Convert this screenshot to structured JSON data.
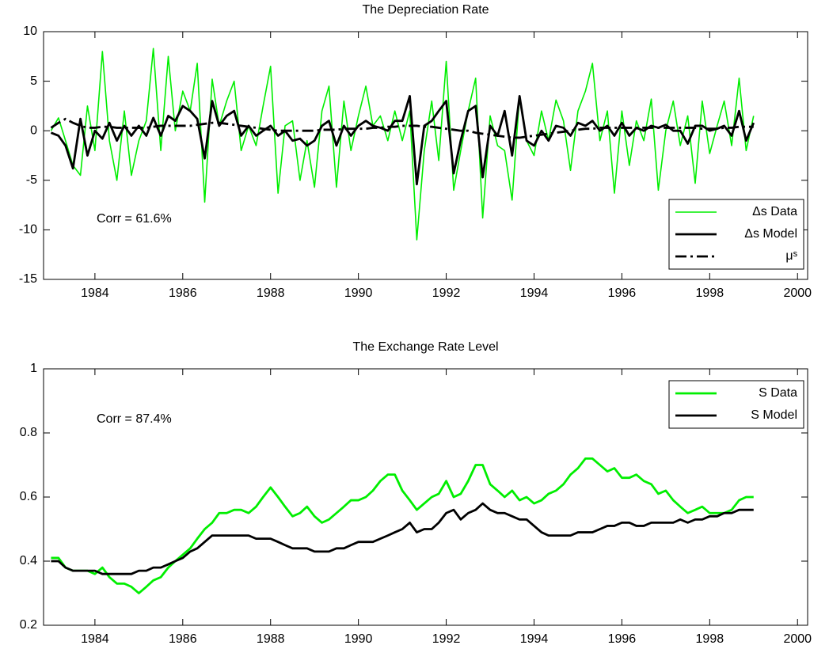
{
  "chart_data": [
    {
      "type": "line",
      "title": "The Depreciation Rate",
      "annotation": "Corr = 61.6%",
      "legend": "lower right",
      "x": [
        1983,
        1983.17,
        1983.33,
        1983.5,
        1983.67,
        1983.83,
        1984,
        1984.17,
        1984.33,
        1984.5,
        1984.67,
        1984.83,
        1985,
        1985.17,
        1985.33,
        1985.5,
        1985.67,
        1985.83,
        1986,
        1986.17,
        1986.33,
        1986.5,
        1986.67,
        1986.83,
        1987,
        1987.17,
        1987.33,
        1987.5,
        1987.67,
        1987.83,
        1988,
        1988.17,
        1988.33,
        1988.5,
        1988.67,
        1988.83,
        1989,
        1989.17,
        1989.33,
        1989.5,
        1989.67,
        1989.83,
        1990,
        1990.17,
        1990.33,
        1990.5,
        1990.67,
        1990.83,
        1991,
        1991.17,
        1991.33,
        1991.5,
        1991.67,
        1991.83,
        1992,
        1992.17,
        1992.33,
        1992.5,
        1992.67,
        1992.83,
        1993,
        1993.17,
        1993.33,
        1993.5,
        1993.67,
        1993.83,
        1994,
        1994.17,
        1994.33,
        1994.5,
        1994.67,
        1994.83,
        1995,
        1995.17,
        1995.33,
        1995.5,
        1995.67,
        1995.83,
        1996,
        1996.17,
        1996.33,
        1996.5,
        1996.67,
        1996.83,
        1997,
        1997.17,
        1997.33,
        1997.5,
        1997.67,
        1997.83,
        1998,
        1998.17,
        1998.33,
        1998.5,
        1998.67,
        1998.83,
        1999
      ],
      "series": [
        {
          "name": "Δs Data",
          "color": "#00ee00",
          "linewidth": 1.6,
          "linestyle": "solid",
          "values": [
            0,
            1.3,
            -1,
            -3.5,
            -4.5,
            2.5,
            -2,
            8,
            -1,
            -5,
            2,
            -4.5,
            -1,
            1,
            8.3,
            -2,
            7.5,
            0,
            4,
            2,
            6.8,
            -7.2,
            5.2,
            0.5,
            3,
            5,
            -2,
            0.5,
            -1.5,
            2.5,
            6.5,
            -6.3,
            0.5,
            1,
            -5,
            -1,
            -5.7,
            2,
            4.5,
            -5.7,
            3,
            -2,
            1.5,
            4.5,
            0.5,
            1.5,
            -1,
            2,
            -1,
            2,
            -11,
            -2,
            3,
            -3,
            7,
            -6,
            -2,
            2,
            5.3,
            -8.8,
            1.5,
            -1.5,
            -2,
            -7,
            3.5,
            -1,
            -2.5,
            2,
            -1,
            3.1,
            1,
            -4,
            2,
            4,
            6.8,
            -1,
            2,
            -6.3,
            2,
            -3.5,
            1,
            -1,
            3.2,
            -6,
            0,
            3,
            -1.5,
            1.5,
            -5.3,
            3,
            -2.3,
            0.5,
            3,
            -1.5,
            5.3,
            -2,
            1.5
          ]
        },
        {
          "name": "Δs Model",
          "color": "#000000",
          "linewidth": 2.8,
          "linestyle": "solid",
          "values": [
            -0.2,
            -0.5,
            -1.5,
            -3.8,
            1.2,
            -2.5,
            0,
            -0.8,
            0.8,
            -1,
            0.5,
            -0.5,
            0.5,
            -0.5,
            1.3,
            -0.5,
            1.5,
            1,
            2.5,
            2,
            1.2,
            -2.8,
            3,
            0.5,
            1.5,
            2,
            -0.5,
            0.5,
            -0.5,
            0,
            0.5,
            -0.5,
            0,
            -1,
            -0.8,
            -1.5,
            -1,
            0.5,
            1,
            -1.5,
            0.5,
            -0.5,
            0.5,
            1,
            0.5,
            0.3,
            0,
            1,
            1,
            3.5,
            -5.4,
            0.5,
            1,
            2,
            3,
            -4.3,
            -1,
            2,
            2.5,
            -4.7,
            0.5,
            -0.5,
            2,
            -2.5,
            3.5,
            -1,
            -1.5,
            0,
            -1,
            0.5,
            0.3,
            -0.5,
            0.8,
            0.5,
            1,
            0,
            0.5,
            -0.5,
            0.8,
            -0.5,
            0.3,
            0,
            0.5,
            0.3,
            0.6,
            0,
            0,
            -1.3,
            0.5,
            0.5,
            0,
            0.2,
            0.5,
            -0.5,
            2,
            -1,
            0.8
          ]
        },
        {
          "name": "μˢ",
          "color": "#000000",
          "linewidth": 2.8,
          "linestyle": "dashdot",
          "values": [
            0.3,
            0.8,
            1.2,
            0.8,
            0.5,
            0.3,
            0.3,
            0.4,
            0.4,
            0.3,
            0.3,
            0.3,
            0.3,
            0.3,
            0.4,
            0.5,
            0.5,
            0.5,
            0.5,
            0.5,
            0.6,
            0.7,
            0.8,
            0.8,
            0.7,
            0.6,
            0.5,
            0.4,
            0.3,
            0.2,
            0.1,
            0,
            0,
            0,
            0,
            0,
            0,
            0.1,
            0.1,
            0.1,
            0.2,
            0.2,
            0.2,
            0.2,
            0.3,
            0.3,
            0.4,
            0.4,
            0.5,
            0.5,
            0.5,
            0.4,
            0.4,
            0.3,
            0.2,
            0.1,
            0,
            0,
            -0.2,
            -0.3,
            -0.4,
            -0.5,
            -0.6,
            -0.7,
            -0.7,
            -0.6,
            -0.5,
            -0.4,
            -0.3,
            -0.2,
            -0.1,
            0,
            0.1,
            0.2,
            0.2,
            0.3,
            0.3,
            0.3,
            0.3,
            0.3,
            0.3,
            0.3,
            0.3,
            0.3,
            0.3,
            0.3,
            0.3,
            0.3,
            0.3,
            0.2,
            0.2,
            0.2,
            0.3,
            0.3,
            0.4,
            0.4,
            0.4
          ]
        }
      ],
      "xlim": [
        1982.83,
        2000.23
      ],
      "xticks": [
        1984,
        1986,
        1988,
        1990,
        1992,
        1994,
        1996,
        1998,
        2000
      ],
      "ylim": [
        -15,
        10
      ],
      "yticks": [
        -15,
        -10,
        -5,
        0,
        5,
        10
      ],
      "grid": false
    },
    {
      "type": "line",
      "title": "The Exchange Rate Level",
      "annotation": "Corr = 87.4%",
      "legend": "upper right",
      "x": [
        1983,
        1983.17,
        1983.33,
        1983.5,
        1983.67,
        1983.83,
        1984,
        1984.17,
        1984.33,
        1984.5,
        1984.67,
        1984.83,
        1985,
        1985.17,
        1985.33,
        1985.5,
        1985.67,
        1985.83,
        1986,
        1986.17,
        1986.33,
        1986.5,
        1986.67,
        1986.83,
        1987,
        1987.17,
        1987.33,
        1987.5,
        1987.67,
        1987.83,
        1988,
        1988.17,
        1988.33,
        1988.5,
        1988.67,
        1988.83,
        1989,
        1989.17,
        1989.33,
        1989.5,
        1989.67,
        1989.83,
        1990,
        1990.17,
        1990.33,
        1990.5,
        1990.67,
        1990.83,
        1991,
        1991.17,
        1991.33,
        1991.5,
        1991.67,
        1991.83,
        1992,
        1992.17,
        1992.33,
        1992.5,
        1992.67,
        1992.83,
        1993,
        1993.17,
        1993.33,
        1993.5,
        1993.67,
        1993.83,
        1994,
        1994.17,
        1994.33,
        1994.5,
        1994.67,
        1994.83,
        1995,
        1995.17,
        1995.33,
        1995.5,
        1995.67,
        1995.83,
        1996,
        1996.17,
        1996.33,
        1996.5,
        1996.67,
        1996.83,
        1997,
        1997.17,
        1997.33,
        1997.5,
        1997.67,
        1997.83,
        1998,
        1998.17,
        1998.33,
        1998.5,
        1998.67,
        1998.83,
        1999
      ],
      "series": [
        {
          "name": "S Data",
          "color": "#00ee00",
          "linewidth": 2.8,
          "linestyle": "solid",
          "values": [
            0.41,
            0.41,
            0.38,
            0.37,
            0.37,
            0.37,
            0.36,
            0.38,
            0.35,
            0.33,
            0.33,
            0.32,
            0.3,
            0.32,
            0.34,
            0.35,
            0.38,
            0.4,
            0.42,
            0.44,
            0.47,
            0.5,
            0.52,
            0.55,
            0.55,
            0.56,
            0.56,
            0.55,
            0.57,
            0.6,
            0.63,
            0.6,
            0.57,
            0.54,
            0.55,
            0.57,
            0.54,
            0.52,
            0.53,
            0.55,
            0.57,
            0.59,
            0.59,
            0.6,
            0.62,
            0.65,
            0.67,
            0.67,
            0.62,
            0.59,
            0.56,
            0.58,
            0.6,
            0.61,
            0.65,
            0.6,
            0.61,
            0.65,
            0.7,
            0.7,
            0.64,
            0.62,
            0.6,
            0.62,
            0.59,
            0.6,
            0.58,
            0.59,
            0.61,
            0.62,
            0.64,
            0.67,
            0.69,
            0.72,
            0.72,
            0.7,
            0.68,
            0.69,
            0.66,
            0.66,
            0.67,
            0.65,
            0.64,
            0.61,
            0.62,
            0.59,
            0.57,
            0.55,
            0.56,
            0.57,
            0.55,
            0.55,
            0.55,
            0.56,
            0.59,
            0.6,
            0.6
          ]
        },
        {
          "name": "S Model",
          "color": "#000000",
          "linewidth": 2.8,
          "linestyle": "solid",
          "values": [
            0.4,
            0.4,
            0.38,
            0.37,
            0.37,
            0.37,
            0.37,
            0.36,
            0.36,
            0.36,
            0.36,
            0.36,
            0.37,
            0.37,
            0.38,
            0.38,
            0.39,
            0.4,
            0.41,
            0.43,
            0.44,
            0.46,
            0.48,
            0.48,
            0.48,
            0.48,
            0.48,
            0.48,
            0.47,
            0.47,
            0.47,
            0.46,
            0.45,
            0.44,
            0.44,
            0.44,
            0.43,
            0.43,
            0.43,
            0.44,
            0.44,
            0.45,
            0.46,
            0.46,
            0.46,
            0.47,
            0.48,
            0.49,
            0.5,
            0.52,
            0.49,
            0.5,
            0.5,
            0.52,
            0.55,
            0.56,
            0.53,
            0.55,
            0.56,
            0.58,
            0.56,
            0.55,
            0.55,
            0.54,
            0.53,
            0.53,
            0.51,
            0.49,
            0.48,
            0.48,
            0.48,
            0.48,
            0.49,
            0.49,
            0.49,
            0.5,
            0.51,
            0.51,
            0.52,
            0.52,
            0.51,
            0.51,
            0.52,
            0.52,
            0.52,
            0.52,
            0.53,
            0.52,
            0.53,
            0.53,
            0.54,
            0.54,
            0.55,
            0.55,
            0.56,
            0.56,
            0.56
          ]
        }
      ],
      "xlim": [
        1982.83,
        2000.23
      ],
      "xticks": [
        1984,
        1986,
        1988,
        1990,
        1992,
        1994,
        1996,
        1998,
        2000
      ],
      "ylim": [
        0.2,
        1
      ],
      "yticks": [
        0.2,
        0.4,
        0.6,
        0.8,
        1
      ],
      "grid": false
    }
  ]
}
